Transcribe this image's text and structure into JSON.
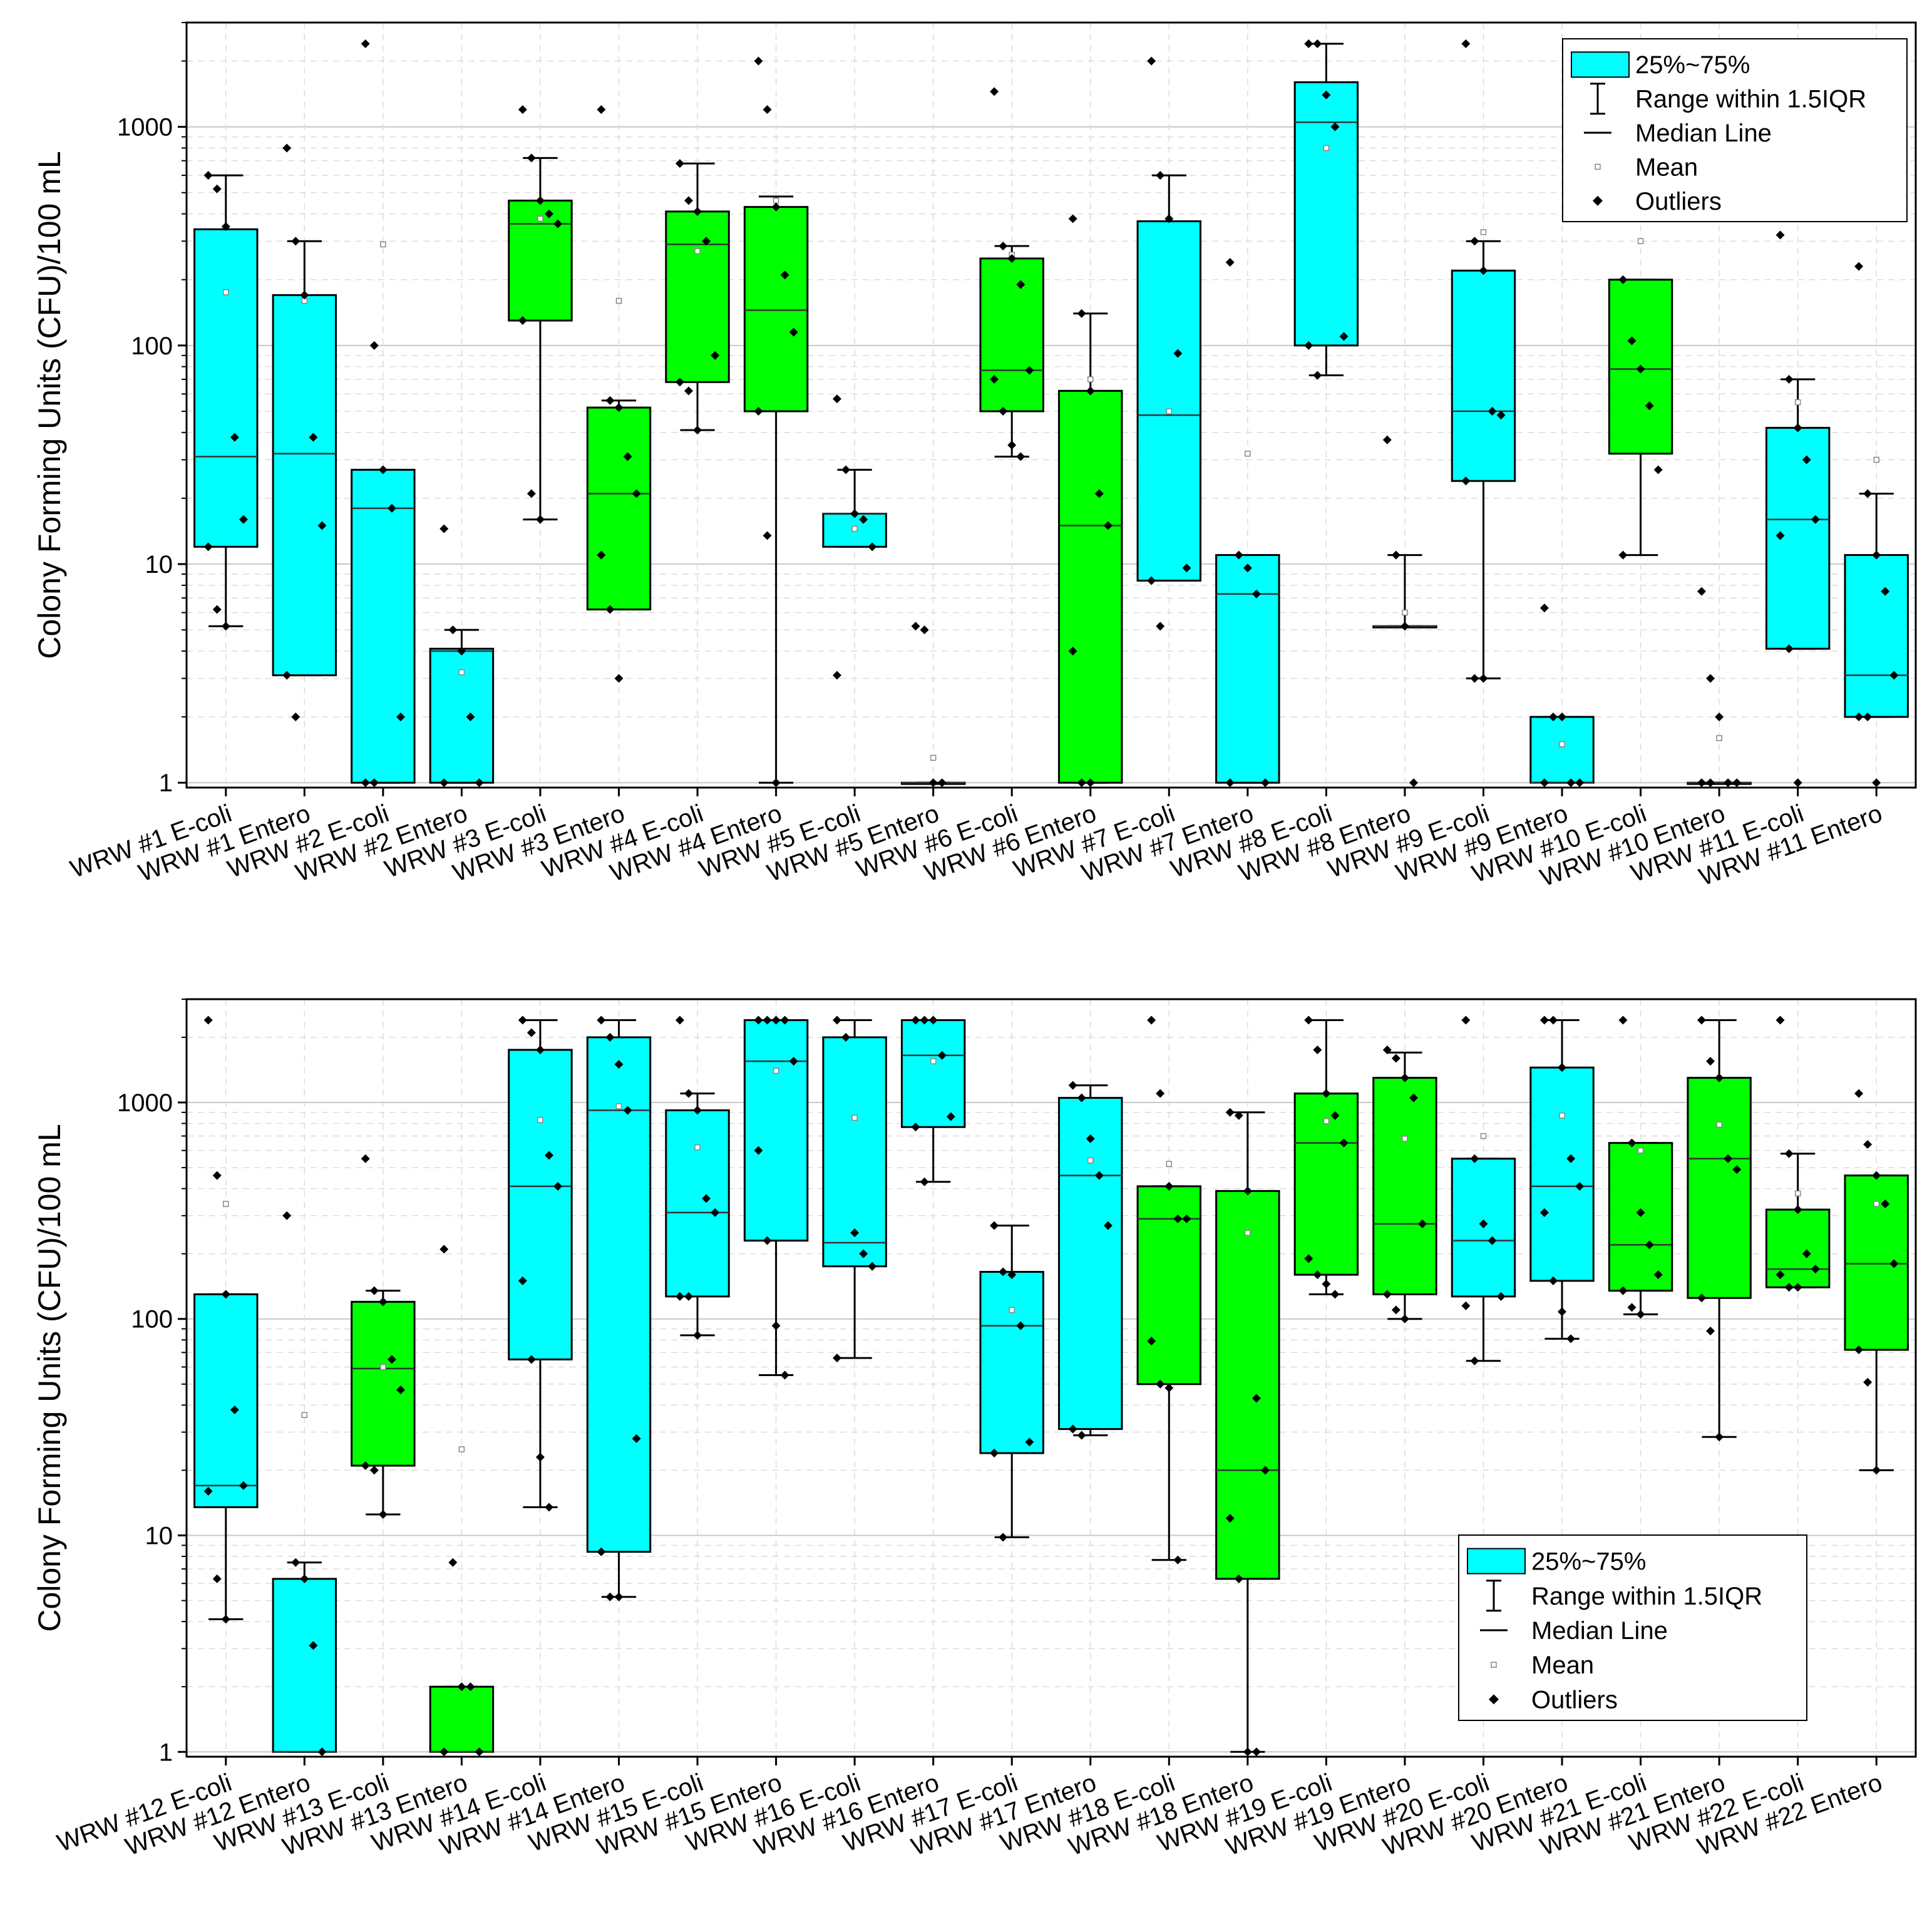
{
  "colors": {
    "ecoli_box": "#00FFFF",
    "entero_box": "#00FF00",
    "grid_major": "#c8c8c8",
    "grid_minor": "#dcdcdc",
    "ink": "#000000"
  },
  "legend": {
    "box_label": "25%~75%",
    "range_label": "Range within 1.5IQR",
    "median_label": "Median Line",
    "mean_label": "Mean",
    "outliers_label": "Outliers"
  },
  "chart_data": [
    {
      "type": "box",
      "title": "",
      "xlabel": "",
      "ylabel": "Colony Forming Units (CFU)/100 mL",
      "yscale": "log",
      "ylim": [
        0.95,
        3000
      ],
      "yticks": [
        1,
        10,
        100,
        1000
      ],
      "ytick_labels": [
        "1",
        "10",
        "100",
        "1000"
      ],
      "grid": true,
      "legend_position": "top-right",
      "categories": [
        "WRW #1 E-coli",
        "WRW #1 Entero",
        "WRW #2 E-coli",
        "WRW #2 Entero",
        "WRW #3 E-coli",
        "WRW #3 Entero",
        "WRW #4 E-coli",
        "WRW #4 Entero",
        "WRW #5 E-coli",
        "WRW #5 Entero",
        "WRW #6 E-coli",
        "WRW #6 Entero",
        "WRW #7 E-coli",
        "WRW #7 Entero",
        "WRW #8 E-coli",
        "WRW #8 Entero",
        "WRW #9 E-coli",
        "WRW #9 Entero",
        "WRW #10 E-coli",
        "WRW #10 Entero",
        "WRW #11 E-coli",
        "WRW #11 Entero"
      ],
      "boxes": [
        {
          "q1": 12,
          "median": 31,
          "q3": 340,
          "wlo": 5.2,
          "whi": 600,
          "mean": 175,
          "color": "cyan",
          "points": [
            600,
            520,
            350,
            38,
            16,
            12,
            6.2,
            5.2
          ]
        },
        {
          "q1": 3.1,
          "median": 32,
          "q3": 170,
          "wlo": 3.1,
          "whi": 300,
          "mean": 160,
          "color": "cyan",
          "points": [
            800,
            300,
            170,
            38,
            15,
            3.1,
            2
          ]
        },
        {
          "q1": 1,
          "median": 18,
          "q3": 27,
          "wlo": 1,
          "whi": 27,
          "mean": 290,
          "color": "cyan",
          "points": [
            2400,
            100,
            27,
            18,
            2,
            1,
            1
          ]
        },
        {
          "q1": 1,
          "median": 4,
          "q3": 4.1,
          "wlo": 1,
          "whi": 5,
          "mean": 3.2,
          "color": "cyan",
          "points": [
            14.5,
            5,
            4,
            2,
            1,
            1
          ]
        },
        {
          "q1": 130,
          "median": 360,
          "q3": 460,
          "wlo": 16,
          "whi": 720,
          "mean": 380,
          "color": "green",
          "points": [
            1200,
            720,
            460,
            400,
            360,
            130,
            21,
            16
          ]
        },
        {
          "q1": 6.2,
          "median": 21,
          "q3": 52,
          "wlo": 6.2,
          "whi": 56,
          "mean": 160,
          "color": "green",
          "points": [
            1200,
            56,
            52,
            31,
            21,
            11,
            6.2,
            3
          ]
        },
        {
          "q1": 68,
          "median": 290,
          "q3": 410,
          "wlo": 41,
          "whi": 680,
          "mean": 270,
          "color": "green",
          "points": [
            680,
            460,
            410,
            300,
            90,
            68,
            62,
            41
          ]
        },
        {
          "q1": 50,
          "median": 145,
          "q3": 430,
          "wlo": 1,
          "whi": 480,
          "mean": 460,
          "color": "green",
          "points": [
            2000,
            1200,
            430,
            210,
            115,
            50,
            13.5,
            1
          ]
        },
        {
          "q1": 12,
          "median": 17,
          "q3": 17,
          "wlo": 12,
          "whi": 27,
          "mean": 14.5,
          "color": "cyan",
          "points": [
            57,
            27,
            17,
            16,
            12,
            3.1
          ]
        },
        {
          "q1": 1,
          "median": 1,
          "q3": 1,
          "wlo": 1,
          "whi": 1,
          "mean": 1.3,
          "color": "cyan",
          "points": [
            5.2,
            5,
            1,
            1
          ]
        },
        {
          "q1": 50,
          "median": 77,
          "q3": 250,
          "wlo": 31,
          "whi": 285,
          "mean": 260,
          "color": "green",
          "points": [
            1450,
            285,
            250,
            190,
            77,
            70,
            50,
            35,
            31
          ]
        },
        {
          "q1": 1,
          "median": 15,
          "q3": 62,
          "wlo": 1,
          "whi": 140,
          "mean": 70,
          "color": "green",
          "points": [
            380,
            140,
            62,
            21,
            15,
            4,
            1,
            1
          ]
        },
        {
          "q1": 8.4,
          "median": 48,
          "q3": 370,
          "wlo": 8.4,
          "whi": 600,
          "mean": 50,
          "color": "cyan",
          "points": [
            2000,
            600,
            380,
            92,
            9.6,
            8.4,
            5.2
          ]
        },
        {
          "q1": 1,
          "median": 7.3,
          "q3": 11,
          "wlo": 1,
          "whi": 11,
          "mean": 32,
          "color": "cyan",
          "points": [
            240,
            11,
            9.6,
            7.3,
            1,
            1
          ]
        },
        {
          "q1": 100,
          "median": 1050,
          "q3": 1600,
          "wlo": 73,
          "whi": 2400,
          "mean": 800,
          "color": "cyan",
          "points": [
            2400,
            2400,
            1400,
            1000,
            110,
            100,
            73
          ]
        },
        {
          "q1": 5.2,
          "median": 5.2,
          "q3": 5.2,
          "wlo": 5.2,
          "whi": 11,
          "mean": 6,
          "color": "cyan",
          "points": [
            37,
            11,
            5.2,
            1
          ]
        },
        {
          "q1": 24,
          "median": 50,
          "q3": 220,
          "wlo": 3,
          "whi": 300,
          "mean": 330,
          "color": "cyan",
          "points": [
            2400,
            300,
            220,
            50,
            48,
            24,
            3,
            3
          ]
        },
        {
          "q1": 1,
          "median": 1,
          "q3": 2,
          "wlo": 1,
          "whi": 2,
          "mean": 1.5,
          "color": "cyan",
          "points": [
            6.3,
            2,
            2,
            1,
            1,
            1
          ]
        },
        {
          "q1": 32,
          "median": 78,
          "q3": 200,
          "wlo": 11,
          "whi": 200,
          "mean": 300,
          "color": "green",
          "points": [
            200,
            105,
            78,
            53,
            27,
            11
          ]
        },
        {
          "q1": 1,
          "median": 1,
          "q3": 1,
          "wlo": 1,
          "whi": 1,
          "mean": 1.6,
          "color": "cyan",
          "points": [
            7.5,
            3,
            2,
            1,
            1,
            1,
            1
          ]
        },
        {
          "q1": 4.1,
          "median": 16,
          "q3": 42,
          "wlo": 4.1,
          "whi": 70,
          "mean": 55,
          "color": "cyan",
          "points": [
            320,
            70,
            42,
            30,
            16,
            13.5,
            4.1,
            1
          ]
        },
        {
          "q1": 2,
          "median": 3.1,
          "q3": 11,
          "wlo": 2,
          "whi": 21,
          "mean": 30,
          "color": "cyan",
          "points": [
            230,
            21,
            11,
            7.5,
            3.1,
            2,
            2,
            1
          ]
        }
      ]
    },
    {
      "type": "box",
      "title": "",
      "xlabel": "",
      "ylabel": "Colony Forming Units (CFU)/100 mL",
      "yscale": "log",
      "ylim": [
        0.95,
        3000
      ],
      "yticks": [
        1,
        10,
        100,
        1000
      ],
      "ytick_labels": [
        "1",
        "10",
        "100",
        "1000"
      ],
      "grid": true,
      "legend_position": "bottom-right",
      "categories": [
        "WRW #12 E-coli",
        "WRW #12 Entero",
        "WRW #13 E-coli",
        "WRW #13 Entero",
        "WRW #14 E-coli",
        "WRW #14 Entero",
        "WRW #15 E-coli",
        "WRW #15 Entero",
        "WRW #16 E-coli",
        "WRW #16 Entero",
        "WRW #17 E-coli",
        "WRW #17 Entero",
        "WRW #18 E-coli",
        "WRW #18 Entero",
        "WRW #19 E-coli",
        "WRW #19 Entero",
        "WRW #20 E-coli",
        "WRW #20 Entero",
        "WRW #21 E-coli",
        "WRW #21 Entero",
        "WRW #22 E-coli",
        "WRW #22 Entero"
      ],
      "boxes": [
        {
          "q1": 13.5,
          "median": 17,
          "q3": 130,
          "wlo": 4.1,
          "whi": 130,
          "mean": 340,
          "color": "cyan",
          "points": [
            2400,
            460,
            130,
            38,
            17,
            16,
            6.3,
            4.1
          ]
        },
        {
          "q1": 1,
          "median": 1,
          "q3": 6.3,
          "wlo": 1,
          "whi": 7.5,
          "mean": 36,
          "color": "cyan",
          "points": [
            300,
            7.5,
            6.3,
            3.1,
            1
          ]
        },
        {
          "q1": 21,
          "median": 59,
          "q3": 120,
          "wlo": 12.5,
          "whi": 135,
          "mean": 60,
          "color": "green",
          "points": [
            550,
            135,
            120,
            65,
            47,
            21,
            20,
            12.5
          ]
        },
        {
          "q1": 1,
          "median": 1,
          "q3": 2,
          "wlo": 1,
          "whi": 2,
          "mean": 25,
          "color": "green",
          "points": [
            210,
            7.5,
            2,
            2,
            1,
            1
          ]
        },
        {
          "q1": 65,
          "median": 410,
          "q3": 1750,
          "wlo": 13.5,
          "whi": 2400,
          "mean": 830,
          "color": "cyan",
          "points": [
            2400,
            2100,
            1750,
            570,
            410,
            150,
            65,
            23,
            13.5
          ]
        },
        {
          "q1": 8.4,
          "median": 920,
          "q3": 2000,
          "wlo": 5.2,
          "whi": 2400,
          "mean": 960,
          "color": "cyan",
          "points": [
            2400,
            2000,
            1500,
            920,
            28,
            8.4,
            5.2,
            5.2
          ]
        },
        {
          "q1": 127,
          "median": 310,
          "q3": 920,
          "wlo": 84,
          "whi": 1100,
          "mean": 620,
          "color": "cyan",
          "points": [
            2400,
            1100,
            920,
            360,
            310,
            127,
            127,
            84
          ]
        },
        {
          "q1": 230,
          "median": 1550,
          "q3": 2400,
          "wlo": 55,
          "whi": 2400,
          "mean": 1400,
          "color": "cyan",
          "points": [
            2400,
            2400,
            2400,
            2400,
            1550,
            600,
            230,
            93,
            55
          ]
        },
        {
          "q1": 175,
          "median": 225,
          "q3": 2000,
          "wlo": 66,
          "whi": 2400,
          "mean": 850,
          "color": "cyan",
          "points": [
            2400,
            2000,
            250,
            200,
            175,
            66
          ]
        },
        {
          "q1": 770,
          "median": 1650,
          "q3": 2400,
          "wlo": 430,
          "whi": 2400,
          "mean": 1550,
          "color": "cyan",
          "points": [
            2400,
            2400,
            2400,
            1650,
            860,
            770,
            430
          ]
        },
        {
          "q1": 24,
          "median": 93,
          "q3": 165,
          "wlo": 9.8,
          "whi": 270,
          "mean": 110,
          "color": "cyan",
          "points": [
            270,
            165,
            160,
            93,
            27,
            24,
            9.8
          ]
        },
        {
          "q1": 31,
          "median": 460,
          "q3": 1050,
          "wlo": 29,
          "whi": 1200,
          "mean": 540,
          "color": "cyan",
          "points": [
            1200,
            1050,
            680,
            460,
            270,
            31,
            29
          ]
        },
        {
          "q1": 50,
          "median": 290,
          "q3": 410,
          "wlo": 7.7,
          "whi": 410,
          "mean": 520,
          "color": "green",
          "points": [
            2400,
            1100,
            410,
            290,
            290,
            79,
            50,
            48,
            7.7
          ]
        },
        {
          "q1": 6.3,
          "median": 20,
          "q3": 390,
          "wlo": 1,
          "whi": 900,
          "mean": 250,
          "color": "green",
          "points": [
            900,
            870,
            390,
            43,
            20,
            12,
            6.3,
            1,
            1
          ]
        },
        {
          "q1": 160,
          "median": 650,
          "q3": 1100,
          "wlo": 130,
          "whi": 2400,
          "mean": 820,
          "color": "green",
          "points": [
            2400,
            1750,
            1100,
            870,
            650,
            190,
            160,
            145,
            130
          ]
        },
        {
          "q1": 130,
          "median": 275,
          "q3": 1300,
          "wlo": 100,
          "whi": 1700,
          "mean": 680,
          "color": "green",
          "points": [
            1750,
            1600,
            1300,
            1050,
            275,
            130,
            110,
            100
          ]
        },
        {
          "q1": 127,
          "median": 230,
          "q3": 550,
          "wlo": 64,
          "whi": 550,
          "mean": 700,
          "color": "cyan",
          "points": [
            2400,
            550,
            275,
            230,
            127,
            115,
            64
          ]
        },
        {
          "q1": 150,
          "median": 410,
          "q3": 1450,
          "wlo": 81,
          "whi": 2400,
          "mean": 870,
          "color": "cyan",
          "points": [
            2400,
            2400,
            1450,
            550,
            410,
            310,
            150,
            108,
            81
          ]
        },
        {
          "q1": 135,
          "median": 220,
          "q3": 650,
          "wlo": 105,
          "whi": 650,
          "mean": 600,
          "color": "green",
          "points": [
            2400,
            650,
            310,
            220,
            160,
            135,
            113,
            105
          ]
        },
        {
          "q1": 125,
          "median": 550,
          "q3": 1300,
          "wlo": 28.5,
          "whi": 2400,
          "mean": 790,
          "color": "green",
          "points": [
            2400,
            1550,
            1300,
            550,
            490,
            125,
            88,
            28.5
          ]
        },
        {
          "q1": 140,
          "median": 170,
          "q3": 320,
          "wlo": 140,
          "whi": 580,
          "mean": 380,
          "color": "green",
          "points": [
            2400,
            580,
            320,
            200,
            170,
            160,
            140,
            140
          ]
        },
        {
          "q1": 72,
          "median": 180,
          "q3": 460,
          "wlo": 20,
          "whi": 460,
          "mean": 340,
          "color": "green",
          "points": [
            1100,
            640,
            460,
            340,
            180,
            72,
            51,
            20
          ]
        }
      ]
    }
  ]
}
